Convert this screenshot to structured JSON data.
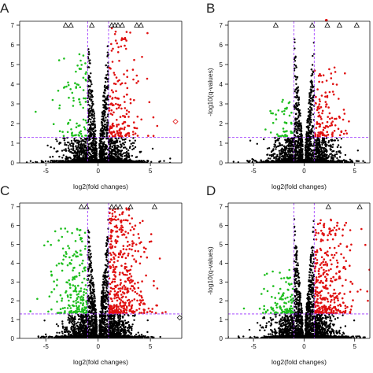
{
  "figure": {
    "panels": [
      {
        "letter": "A",
        "show_ylabel": false,
        "upper_right": [
          1,
          1
        ]
      },
      {
        "letter": "B",
        "show_ylabel": true,
        "upper_right": [
          1,
          1
        ]
      },
      {
        "letter": "C",
        "show_ylabel": false,
        "upper_right": [
          1,
          1
        ]
      },
      {
        "letter": "D",
        "show_ylabel": true,
        "upper_right": [
          1,
          1
        ]
      }
    ]
  },
  "chart_data": [
    {
      "panel": "A",
      "type": "scatter",
      "title": "",
      "xlabel": "log2(fold changes)",
      "ylabel": "",
      "xlim": [
        -7.5,
        8
      ],
      "ylim": [
        0,
        7.2
      ],
      "xticks": [
        -5,
        0,
        5
      ],
      "yticks": [
        0,
        1,
        2,
        3,
        4,
        5,
        6,
        7
      ],
      "thresholds": {
        "x": [
          -1,
          1
        ],
        "y": 1.3
      },
      "colors": {
        "down": "#1fbf1f",
        "up": "#e01010",
        "ns": "#000000",
        "threshold": "#9b30ff"
      },
      "density": {
        "ns": 1700,
        "down": 80,
        "up": 170,
        "downSpread": 1.3,
        "upSpread": 1.5,
        "upMaxY": 6.8,
        "downMaxY": 5.5
      },
      "extreme_points": [
        {
          "x": -3.1,
          "y": 7,
          "marker": "triangle"
        },
        {
          "x": -2.6,
          "y": 7,
          "marker": "triangle"
        },
        {
          "x": -0.6,
          "y": 7,
          "marker": "triangle"
        },
        {
          "x": 1.3,
          "y": 7,
          "marker": "triangle"
        },
        {
          "x": 1.6,
          "y": 7,
          "marker": "triangle"
        },
        {
          "x": 1.9,
          "y": 7,
          "marker": "triangle"
        },
        {
          "x": 2.3,
          "y": 7,
          "marker": "triangle"
        },
        {
          "x": 3.7,
          "y": 7,
          "marker": "triangle"
        },
        {
          "x": 4.1,
          "y": 7,
          "marker": "triangle"
        },
        {
          "x": 7.4,
          "y": 2.1,
          "marker": "diamond",
          "color": "#e01010"
        }
      ]
    },
    {
      "panel": "B",
      "type": "scatter",
      "title": "",
      "xlabel": "log2(fold changes)",
      "ylabel": "-log10(q-values)",
      "xlim": [
        -7.5,
        6.5
      ],
      "ylim": [
        0,
        7.2
      ],
      "xticks": [
        -5,
        0,
        5
      ],
      "yticks": [
        0,
        1,
        2,
        3,
        4,
        5,
        6,
        7
      ],
      "thresholds": {
        "x": [
          -1,
          1
        ],
        "y": 1.3
      },
      "colors": {
        "down": "#1fbf1f",
        "up": "#e01010",
        "ns": "#000000",
        "threshold": "#9b30ff"
      },
      "density": {
        "ns": 1700,
        "down": 45,
        "up": 120,
        "downSpread": 1.0,
        "upSpread": 1.5,
        "upMaxY": 4.8,
        "downMaxY": 3.2
      },
      "extreme_points": [
        {
          "x": -2.8,
          "y": 7,
          "marker": "triangle"
        },
        {
          "x": 0.8,
          "y": 7,
          "marker": "triangle"
        },
        {
          "x": 2.3,
          "y": 7,
          "marker": "triangle"
        },
        {
          "x": 3.5,
          "y": 7,
          "marker": "triangle"
        },
        {
          "x": 5.2,
          "y": 7,
          "marker": "triangle"
        },
        {
          "x": 2.2,
          "y": 7.25,
          "marker": "dot",
          "color": "#e01010"
        }
      ]
    },
    {
      "panel": "C",
      "type": "scatter",
      "title": "",
      "xlabel": "log2(fold changes)",
      "ylabel": "",
      "xlim": [
        -7.5,
        8
      ],
      "ylim": [
        0,
        7.2
      ],
      "xticks": [
        -5,
        0,
        5
      ],
      "yticks": [
        0,
        1,
        2,
        3,
        4,
        5,
        6,
        7
      ],
      "thresholds": {
        "x": [
          -1,
          1
        ],
        "y": 1.3
      },
      "colors": {
        "down": "#1fbf1f",
        "up": "#e01010",
        "ns": "#000000",
        "threshold": "#9b30ff"
      },
      "density": {
        "ns": 2000,
        "down": 210,
        "up": 420,
        "downSpread": 1.6,
        "upSpread": 1.8,
        "upMaxY": 6.9,
        "downMaxY": 5.8
      },
      "extreme_points": [
        {
          "x": -1.6,
          "y": 7,
          "marker": "triangle"
        },
        {
          "x": -1.1,
          "y": 7,
          "marker": "triangle"
        },
        {
          "x": 1.3,
          "y": 7,
          "marker": "triangle"
        },
        {
          "x": 1.7,
          "y": 7,
          "marker": "triangle"
        },
        {
          "x": 2.1,
          "y": 7,
          "marker": "triangle"
        },
        {
          "x": 3.1,
          "y": 7,
          "marker": "triangle"
        },
        {
          "x": 5.4,
          "y": 7,
          "marker": "triangle"
        },
        {
          "x": 7.8,
          "y": 1.1,
          "marker": "diamond",
          "color": "#111111"
        }
      ]
    },
    {
      "panel": "D",
      "type": "scatter",
      "title": "",
      "xlabel": "log2(fold changes)",
      "ylabel": "-log10(q-values)",
      "xlim": [
        -7.5,
        6.5
      ],
      "ylim": [
        0,
        7.2
      ],
      "xticks": [
        -5,
        0,
        5
      ],
      "yticks": [
        0,
        1,
        2,
        3,
        4,
        5,
        6,
        7
      ],
      "thresholds": {
        "x": [
          -1,
          1
        ],
        "y": 1.3
      },
      "colors": {
        "down": "#1fbf1f",
        "up": "#e01010",
        "ns": "#000000",
        "threshold": "#9b30ff"
      },
      "density": {
        "ns": 1900,
        "down": 110,
        "up": 320,
        "downSpread": 1.4,
        "upSpread": 1.8,
        "upMaxY": 6.3,
        "downMaxY": 3.6
      },
      "extreme_points": [
        {
          "x": 2.4,
          "y": 7,
          "marker": "triangle"
        },
        {
          "x": 5.5,
          "y": 7,
          "marker": "triangle"
        }
      ]
    }
  ]
}
